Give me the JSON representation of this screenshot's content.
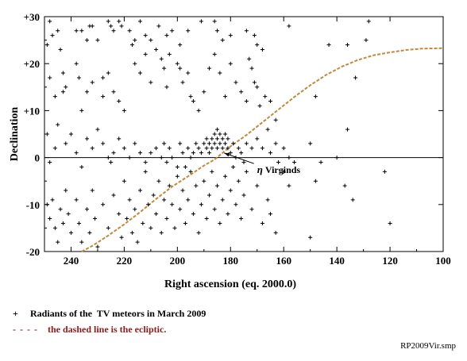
{
  "chart_data": {
    "type": "scatter",
    "xlabel": "Right ascension  (eq. 2000.0)",
    "ylabel": "Declination",
    "xlim": [
      250,
      100
    ],
    "ylim": [
      -20,
      30
    ],
    "x_reversed": true,
    "xticks": [
      240,
      220,
      200,
      180,
      160,
      140,
      120,
      100
    ],
    "yticks": [
      -20,
      -10,
      0,
      10,
      20,
      30
    ],
    "ytick_labels": [
      "-20",
      "-10",
      "0",
      "+10",
      "+20",
      "+30"
    ],
    "horizontal_line_at": 0,
    "annotation": {
      "symbol": "η",
      "text": " Virginds",
      "points_to": [
        183,
        1.3
      ],
      "text_at": [
        170,
        -2.3
      ]
    },
    "series": [
      {
        "marker": "+",
        "color": "#000000",
        "points": [
          [
            248,
            29
          ],
          [
            249,
            24
          ],
          [
            247,
            26
          ],
          [
            245,
            27
          ],
          [
            244,
            23
          ],
          [
            243,
            18
          ],
          [
            242,
            15
          ],
          [
            238,
            27
          ],
          [
            236,
            27
          ],
          [
            234,
            25
          ],
          [
            233,
            28
          ],
          [
            232,
            28
          ],
          [
            230,
            25
          ],
          [
            228,
            17
          ],
          [
            228,
            13
          ],
          [
            226,
            29
          ],
          [
            225,
            28
          ],
          [
            224,
            27
          ],
          [
            222,
            29
          ],
          [
            221,
            28
          ],
          [
            218,
            27
          ],
          [
            216,
            25
          ],
          [
            214,
            29
          ],
          [
            212,
            26
          ],
          [
            210,
            25
          ],
          [
            207,
            28
          ],
          [
            204,
            26
          ],
          [
            202,
            27
          ],
          [
            199,
            24
          ],
          [
            196,
            27
          ],
          [
            191,
            29
          ],
          [
            186,
            29
          ],
          [
            185,
            27
          ],
          [
            183,
            25
          ],
          [
            180,
            26
          ],
          [
            174,
            27
          ],
          [
            171,
            26
          ],
          [
            170,
            24
          ],
          [
            168,
            23
          ],
          [
            158,
            28
          ],
          [
            143,
            24
          ],
          [
            136,
            24
          ],
          [
            129,
            25
          ],
          [
            128,
            29
          ],
          [
            248,
            17
          ],
          [
            246,
            13
          ],
          [
            243,
            14
          ],
          [
            238,
            20
          ],
          [
            237,
            17
          ],
          [
            236,
            10
          ],
          [
            234,
            14
          ],
          [
            232,
            16
          ],
          [
            226,
            18
          ],
          [
            224,
            14
          ],
          [
            222,
            12
          ],
          [
            220,
            10
          ],
          [
            217,
            24
          ],
          [
            216,
            20
          ],
          [
            214,
            18
          ],
          [
            212,
            22
          ],
          [
            210,
            16
          ],
          [
            208,
            23
          ],
          [
            206,
            21
          ],
          [
            205,
            19
          ],
          [
            204,
            15
          ],
          [
            203,
            22
          ],
          [
            200,
            20
          ],
          [
            199,
            19
          ],
          [
            198,
            16
          ],
          [
            196,
            18
          ],
          [
            195,
            13
          ],
          [
            194,
            12
          ],
          [
            192,
            10
          ],
          [
            190,
            14
          ],
          [
            188,
            19
          ],
          [
            186,
            22
          ],
          [
            184,
            18
          ],
          [
            182,
            13
          ],
          [
            180,
            20
          ],
          [
            178,
            16
          ],
          [
            176,
            14
          ],
          [
            174,
            12
          ],
          [
            173,
            21
          ],
          [
            172,
            19
          ],
          [
            171,
            16
          ],
          [
            170,
            15
          ],
          [
            169,
            11
          ],
          [
            167,
            13
          ],
          [
            165,
            12
          ],
          [
            163,
            8
          ],
          [
            148,
            13
          ],
          [
            133,
            17
          ],
          [
            249,
            5
          ],
          [
            248,
            -1
          ],
          [
            246,
            2
          ],
          [
            245,
            7
          ],
          [
            242,
            3
          ],
          [
            240,
            5
          ],
          [
            238,
            1
          ],
          [
            236,
            -2
          ],
          [
            234,
            4
          ],
          [
            232,
            2
          ],
          [
            230,
            6
          ],
          [
            228,
            3
          ],
          [
            226,
            0
          ],
          [
            225,
            -1
          ],
          [
            224,
            1
          ],
          [
            222,
            4
          ],
          [
            220,
            2
          ],
          [
            218,
            0
          ],
          [
            216,
            3
          ],
          [
            214,
            1
          ],
          [
            212,
            -1
          ],
          [
            210,
            1
          ],
          [
            208,
            2
          ],
          [
            206,
            0
          ],
          [
            205,
            3
          ],
          [
            204,
            -1
          ],
          [
            203,
            2
          ],
          [
            202,
            0
          ],
          [
            200,
            -2
          ],
          [
            199,
            3
          ],
          [
            198,
            1
          ],
          [
            197,
            -2
          ],
          [
            196,
            2
          ],
          [
            195,
            0
          ],
          [
            194,
            1
          ],
          [
            193,
            3
          ],
          [
            192,
            2
          ],
          [
            191,
            1
          ],
          [
            190,
            3
          ],
          [
            189,
            2
          ],
          [
            189,
            4
          ],
          [
            188,
            3
          ],
          [
            188,
            1
          ],
          [
            187,
            4
          ],
          [
            187,
            2
          ],
          [
            186,
            5
          ],
          [
            186,
            3
          ],
          [
            185,
            4
          ],
          [
            185,
            2
          ],
          [
            185,
            6
          ],
          [
            184,
            3
          ],
          [
            184,
            5
          ],
          [
            183,
            4
          ],
          [
            183,
            2
          ],
          [
            182,
            5
          ],
          [
            182,
            3
          ],
          [
            181,
            4
          ],
          [
            181,
            2
          ],
          [
            180,
            1
          ],
          [
            179,
            3
          ],
          [
            178,
            0
          ],
          [
            177,
            2
          ],
          [
            176,
            1
          ],
          [
            175,
            -1
          ],
          [
            174,
            3
          ],
          [
            172,
            2
          ],
          [
            170,
            4
          ],
          [
            168,
            2
          ],
          [
            166,
            6
          ],
          [
            165,
            1
          ],
          [
            163,
            3
          ],
          [
            162,
            -1
          ],
          [
            160,
            2
          ],
          [
            158,
            0
          ],
          [
            156,
            -1
          ],
          [
            150,
            3
          ],
          [
            146,
            -1
          ],
          [
            140,
            0
          ],
          [
            136,
            6
          ],
          [
            122,
            -3
          ],
          [
            249,
            -10
          ],
          [
            248,
            -13
          ],
          [
            247,
            -9
          ],
          [
            246,
            -15
          ],
          [
            245,
            -18
          ],
          [
            244,
            -11
          ],
          [
            243,
            -14
          ],
          [
            242,
            -7
          ],
          [
            241,
            -12
          ],
          [
            240,
            -16
          ],
          [
            238,
            -9
          ],
          [
            237,
            -14
          ],
          [
            236,
            -18
          ],
          [
            234,
            -11
          ],
          [
            233,
            -16
          ],
          [
            232,
            -7
          ],
          [
            231,
            -13
          ],
          [
            230,
            -19
          ],
          [
            228,
            -10
          ],
          [
            226,
            -15
          ],
          [
            224,
            -8
          ],
          [
            222,
            -12
          ],
          [
            221,
            -17
          ],
          [
            220,
            -5
          ],
          [
            219,
            -13
          ],
          [
            218,
            -9
          ],
          [
            217,
            -16
          ],
          [
            216,
            -11
          ],
          [
            215,
            -18
          ],
          [
            214,
            -7
          ],
          [
            213,
            -14
          ],
          [
            212,
            -3
          ],
          [
            211,
            -10
          ],
          [
            210,
            -15
          ],
          [
            209,
            -8
          ],
          [
            208,
            -12
          ],
          [
            207,
            -5
          ],
          [
            206,
            -16
          ],
          [
            205,
            -9
          ],
          [
            204,
            -13
          ],
          [
            203,
            -6
          ],
          [
            202,
            -10
          ],
          [
            201,
            -15
          ],
          [
            200,
            -4
          ],
          [
            199,
            -11
          ],
          [
            198,
            -7
          ],
          [
            197,
            -14
          ],
          [
            196,
            -9
          ],
          [
            195,
            -3
          ],
          [
            194,
            -12
          ],
          [
            193,
            -6
          ],
          [
            192,
            -16
          ],
          [
            191,
            -10
          ],
          [
            190,
            -5
          ],
          [
            189,
            -13
          ],
          [
            188,
            -8
          ],
          [
            187,
            -3
          ],
          [
            186,
            -11
          ],
          [
            185,
            -6
          ],
          [
            184,
            -14
          ],
          [
            183,
            -9
          ],
          [
            182,
            -4
          ],
          [
            181,
            -12
          ],
          [
            180,
            -7
          ],
          [
            179,
            -2
          ],
          [
            178,
            -10
          ],
          [
            177,
            -5
          ],
          [
            176,
            -13
          ],
          [
            175,
            -8
          ],
          [
            174,
            -3
          ],
          [
            172,
            -11
          ],
          [
            170,
            -6
          ],
          [
            168,
            -14
          ],
          [
            166,
            -9
          ],
          [
            165,
            -12
          ],
          [
            163,
            -16
          ],
          [
            160,
            -3
          ],
          [
            158,
            -6
          ],
          [
            150,
            -17
          ],
          [
            148,
            -5
          ],
          [
            137,
            -6
          ],
          [
            134,
            -9
          ],
          [
            120,
            -14
          ]
        ]
      },
      {
        "name": "ecliptic",
        "style": "dashed",
        "color": "#c08a3c",
        "points": [
          [
            236,
            -20
          ],
          [
            232,
            -18.8
          ],
          [
            226,
            -16.6
          ],
          [
            220,
            -14.2
          ],
          [
            214,
            -11.6
          ],
          [
            208,
            -8.8
          ],
          [
            202,
            -6.2
          ],
          [
            196,
            -4
          ],
          [
            190,
            -1.7
          ],
          [
            186,
            -0.4
          ],
          [
            180,
            2.4
          ],
          [
            174,
            4.8
          ],
          [
            168,
            7.5
          ],
          [
            162,
            10.2
          ],
          [
            156,
            12.9
          ],
          [
            150,
            15.4
          ],
          [
            144,
            17.6
          ],
          [
            138,
            19.4
          ],
          [
            132,
            20.8
          ],
          [
            126,
            21.8
          ],
          [
            120,
            22.4
          ],
          [
            114,
            22.9
          ],
          [
            108,
            23.2
          ],
          [
            100,
            23.3
          ]
        ]
      }
    ]
  },
  "legend": {
    "symbol": "+",
    "item1": "Radiants of the  TV meteors in March 2009",
    "dashes": "- - - -",
    "item2": "the dashed line is the ecliptic."
  },
  "file_tag": "RP2009Vir.smp"
}
